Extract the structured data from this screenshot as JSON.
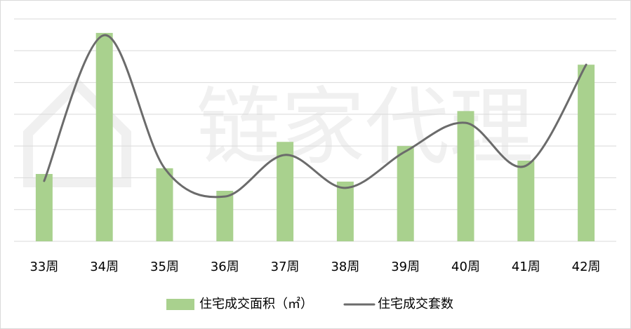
{
  "chart_data": {
    "type": "bar-line",
    "watermark": "链家代理",
    "categories": [
      "33周",
      "34周",
      "35周",
      "36周",
      "37周",
      "38周",
      "39周",
      "40周",
      "41周",
      "42周"
    ],
    "series": [
      {
        "name": "住宅成交面积（㎡）",
        "type": "bar",
        "color": "#a9d18e",
        "values": [
          2.12,
          6.56,
          2.3,
          1.59,
          3.13,
          1.88,
          3.0,
          4.1,
          2.54,
          5.56
        ]
      },
      {
        "name": "住宅成交套数",
        "type": "line",
        "smooth": true,
        "color": "#6b6b6b",
        "values": [
          1.9,
          6.49,
          2.3,
          1.41,
          2.72,
          1.68,
          2.83,
          3.73,
          2.38,
          5.56
        ]
      }
    ],
    "ylim": [
      0,
      7
    ],
    "yticks": [
      0,
      1,
      2,
      3,
      4,
      5,
      6,
      7
    ],
    "grid": true,
    "legend": "bottom"
  }
}
